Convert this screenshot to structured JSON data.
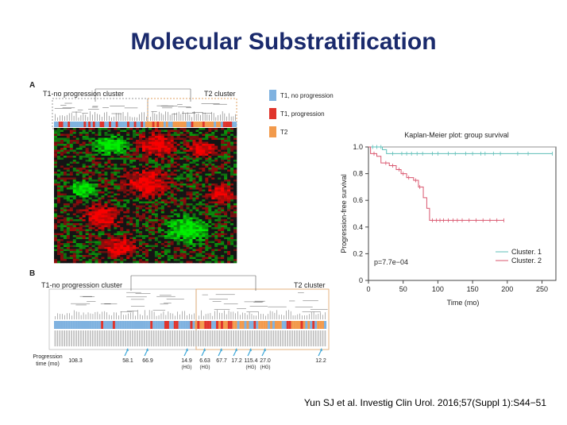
{
  "slide": {
    "title": "Molecular Substratification",
    "citation": "Yun SJ et al. Investig Clin Urol. 2016;57(Suppl 1):S44−51"
  },
  "panel_a": {
    "label": "A",
    "cluster_left": "T1-no progression cluster",
    "cluster_right": "T2 cluster"
  },
  "legend": {
    "items": [
      {
        "label": "T1, no progression",
        "color": "#7fb2e0"
      },
      {
        "label": "T1, progression",
        "color": "#e0342c"
      },
      {
        "label": "T2",
        "color": "#f29a4c"
      }
    ]
  },
  "panel_b": {
    "label": "B",
    "cluster_left": "T1-no progression cluster",
    "cluster_right": "T2 cluster",
    "progression_title_1": "Progression",
    "progression_title_2": "time (mo)",
    "times": [
      {
        "value": "108.3",
        "sub": ""
      },
      {
        "value": "58.1",
        "sub": ""
      },
      {
        "value": "66.9",
        "sub": ""
      },
      {
        "value": "14.9",
        "sub": "(HG)"
      },
      {
        "value": "6.63",
        "sub": "(HG)"
      },
      {
        "value": "67.7",
        "sub": ""
      },
      {
        "value": "17.2",
        "sub": ""
      },
      {
        "value": "115.4",
        "sub": "(HG)"
      },
      {
        "value": "27.0",
        "sub": "(HG)"
      },
      {
        "value": "12.2",
        "sub": ""
      }
    ]
  },
  "chart_data": {
    "type": "line",
    "title": "Kaplan-Meier plot: group survival",
    "xlabel": "Time (mo)",
    "ylabel": "Progression-free survival",
    "xlim": [
      0,
      270
    ],
    "ylim": [
      0,
      1.0
    ],
    "xticks": [
      "0",
      "50",
      "100",
      "150",
      "200",
      "250"
    ],
    "yticks": [
      "0",
      "0.2",
      "0.4",
      "0.6",
      "0.8",
      "1.0"
    ],
    "annotation": "p=7.7e−04",
    "legend_position": "bottom-right",
    "series": [
      {
        "name": "Cluster. 1",
        "color": "#5fbfb8",
        "steps": [
          [
            0,
            1.0
          ],
          [
            20,
            1.0
          ],
          [
            20,
            0.98
          ],
          [
            26,
            0.98
          ],
          [
            26,
            0.95
          ],
          [
            265,
            0.95
          ]
        ],
        "censor": [
          6,
          12,
          18,
          35,
          48,
          55,
          62,
          70,
          78,
          92,
          100,
          115,
          125,
          140,
          150,
          162,
          168,
          180,
          190,
          215,
          230,
          265
        ]
      },
      {
        "name": "Cluster. 2",
        "color": "#d9566e",
        "steps": [
          [
            0,
            1.0
          ],
          [
            3,
            1.0
          ],
          [
            3,
            0.95
          ],
          [
            12,
            0.95
          ],
          [
            12,
            0.93
          ],
          [
            18,
            0.93
          ],
          [
            18,
            0.88
          ],
          [
            30,
            0.88
          ],
          [
            30,
            0.86
          ],
          [
            40,
            0.86
          ],
          [
            40,
            0.83
          ],
          [
            47,
            0.83
          ],
          [
            47,
            0.8
          ],
          [
            55,
            0.8
          ],
          [
            55,
            0.77
          ],
          [
            65,
            0.77
          ],
          [
            65,
            0.75
          ],
          [
            72,
            0.75
          ],
          [
            72,
            0.7
          ],
          [
            79,
            0.7
          ],
          [
            79,
            0.62
          ],
          [
            84,
            0.62
          ],
          [
            84,
            0.54
          ],
          [
            88,
            0.54
          ],
          [
            88,
            0.45
          ],
          [
            195,
            0.45
          ]
        ],
        "censor": [
          8,
          25,
          35,
          44,
          50,
          58,
          68,
          74,
          92,
          98,
          103,
          108,
          115,
          122,
          128,
          135,
          145,
          155,
          165,
          175,
          185,
          195
        ]
      }
    ]
  }
}
